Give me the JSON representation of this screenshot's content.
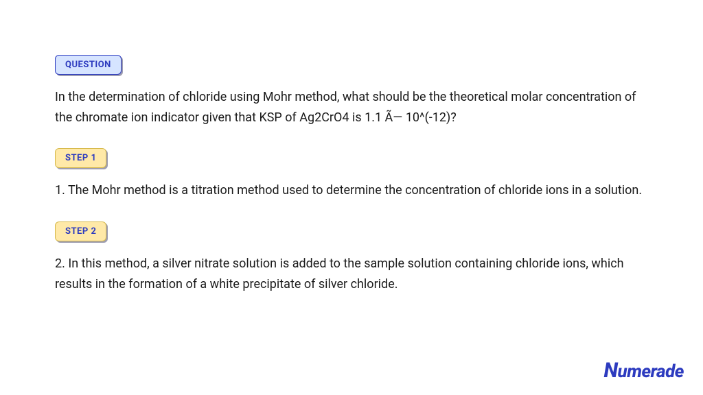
{
  "question": {
    "badge_label": "QUESTION",
    "text": "In the determination of chloride using Mohr method, what should be the theoretical molar concentration of the chromate ion indicator given that KSP of Ag2CrO4 is 1.1 Ã— 10^(-12)?",
    "badge_bg": "#d6e4ff",
    "badge_border": "#2d3bbf",
    "badge_color": "#2d3bbf"
  },
  "steps": [
    {
      "badge_label": "STEP 1",
      "text": "1. The Mohr method is a titration method used to determine the concentration of chloride ions in a solution."
    },
    {
      "badge_label": "STEP 2",
      "text": "2. In this method, a silver nitrate solution is added to the sample solution containing chloride ions, which results in the formation of a white precipitate of silver chloride."
    }
  ],
  "step_badge": {
    "bg": "#ffe9a8",
    "border": "#d6b94a",
    "color": "#2d3bbf"
  },
  "body_text_color": "#1a1a1a",
  "body_font_size": 18,
  "logo": {
    "text": "umerade",
    "color": "#2d3bbf"
  },
  "background_color": "#ffffff"
}
